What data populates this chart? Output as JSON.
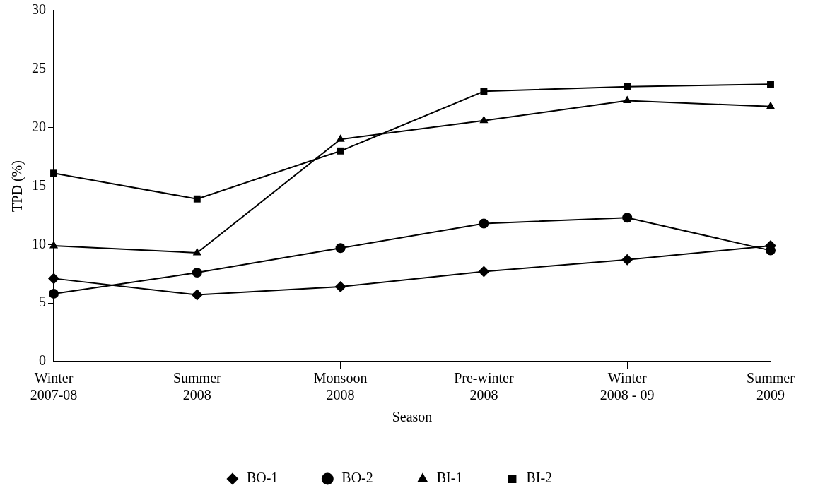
{
  "chart_data": {
    "type": "line",
    "xlabel": "Season",
    "ylabel": "TPD (%)",
    "categories": [
      "Winter\n2007-08",
      "Summer\n2008",
      "Monsoon\n2008",
      "Pre-winter\n2008",
      "Winter\n2008 - 09",
      "Summer\n2009"
    ],
    "ylim": [
      0,
      30
    ],
    "yticks": [
      0,
      5,
      10,
      15,
      20,
      25,
      30
    ],
    "grid": false,
    "legend": "bottom",
    "line_style": "solid",
    "series": [
      {
        "name": "BO-1",
        "color": "#000000",
        "marker": "diamond",
        "values": [
          7.1,
          5.7,
          6.4,
          7.7,
          8.7,
          9.9
        ]
      },
      {
        "name": "BO-2",
        "color": "#000000",
        "marker": "circle",
        "values": [
          5.8,
          7.6,
          9.7,
          11.8,
          12.3,
          9.5
        ]
      },
      {
        "name": "BI-1",
        "color": "#000000",
        "marker": "triangle",
        "values": [
          9.9,
          9.3,
          19.0,
          20.6,
          22.3,
          21.8
        ]
      },
      {
        "name": "BI-2",
        "color": "#000000",
        "marker": "square",
        "values": [
          16.1,
          13.9,
          18.0,
          23.1,
          23.5,
          23.7
        ]
      }
    ]
  }
}
